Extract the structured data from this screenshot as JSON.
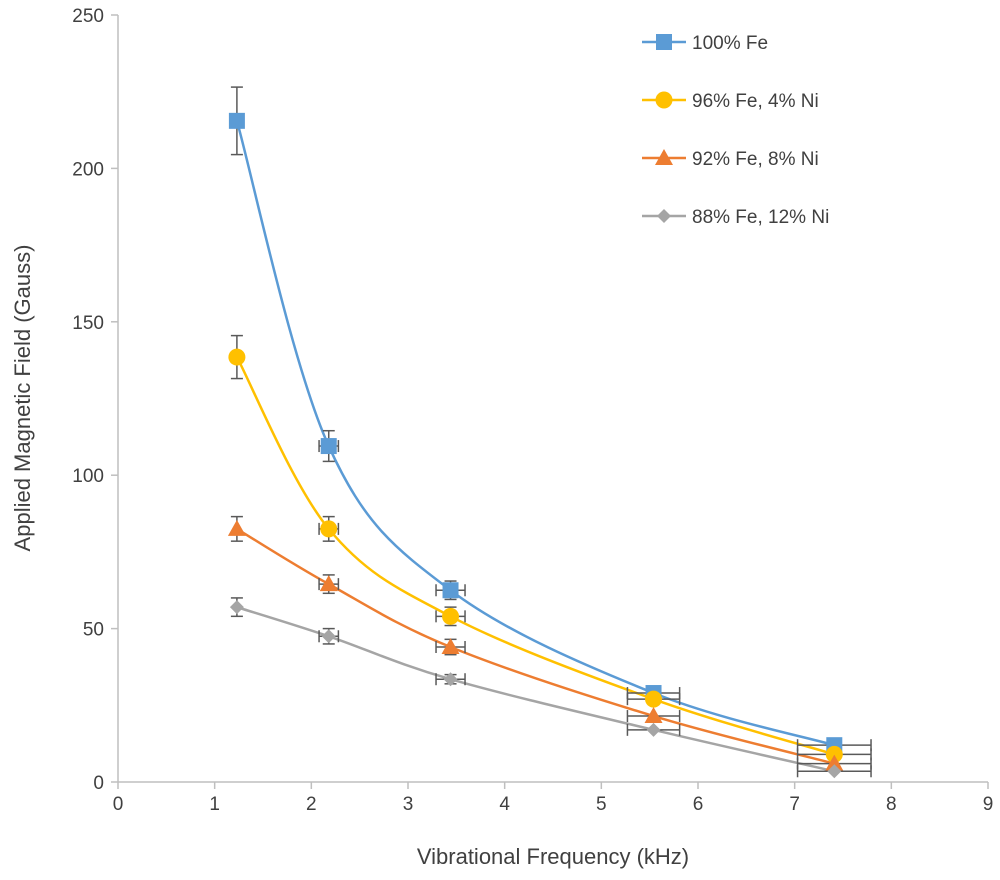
{
  "chart_data": {
    "type": "scatter",
    "title": "",
    "xlabel": "Vibrational Frequency (kHz)",
    "ylabel": "Applied Magnetic Field (Gauss)",
    "xlim": [
      0,
      9
    ],
    "ylim": [
      0,
      250
    ],
    "xticks": [
      0,
      1,
      2,
      3,
      4,
      5,
      6,
      7,
      8,
      9
    ],
    "yticks": [
      0,
      50,
      100,
      150,
      200,
      250
    ],
    "grid": false,
    "legend_position": "top-right",
    "x": [
      1.23,
      2.18,
      3.44,
      5.54,
      7.41
    ],
    "x_err": [
      0,
      0.1,
      0.15,
      0.27,
      0.38
    ],
    "series": [
      {
        "name": "100% Fe",
        "color": "#5b9bd5",
        "marker": "square",
        "values": [
          215.5,
          109.5,
          62.5,
          29,
          12
        ],
        "y_err": [
          11,
          5,
          3,
          0,
          0
        ]
      },
      {
        "name": "96% Fe, 4% Ni",
        "color": "#ffc000",
        "marker": "circle",
        "values": [
          138.5,
          82.5,
          54,
          27,
          9
        ],
        "y_err": [
          7,
          4,
          3,
          0,
          0
        ]
      },
      {
        "name": "92% Fe, 8% Ni",
        "color": "#ed7d31",
        "marker": "triangle",
        "values": [
          82.5,
          64.5,
          44,
          21.5,
          6
        ],
        "y_err": [
          4,
          3,
          2.5,
          0,
          0
        ]
      },
      {
        "name": "88% Fe, 12% Ni",
        "color": "#a5a5a5",
        "marker": "diamond",
        "values": [
          57,
          47.5,
          33.5,
          17,
          3.5
        ],
        "y_err": [
          3,
          2.5,
          1.5,
          0,
          0
        ]
      }
    ]
  }
}
